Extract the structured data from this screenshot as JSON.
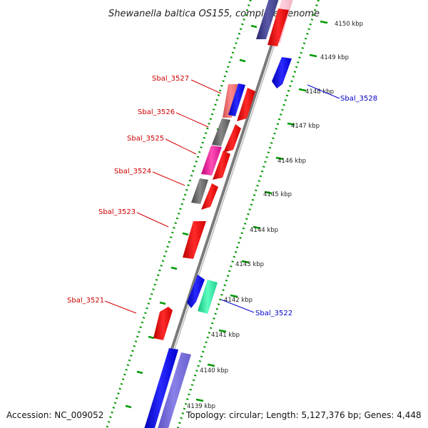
{
  "title": "Shewanella baltica OS155, complete genome",
  "footer": {
    "accession": "Accession: NC_009052",
    "summary": "Topology: circular; Length: 5,127,376 bp; Genes: 4,448"
  },
  "kbp_ticks": [
    "4150 kbp",
    "4149 kbp",
    "4148 kbp",
    "4147 kbp",
    "4146 kbp",
    "4145 kbp",
    "4144 kbp",
    "4143 kbp",
    "4142 kbp",
    "4141 kbp",
    "4140 kbp",
    "4139 kbp"
  ],
  "gene_labels": [
    "Sbal_3527",
    "Sbal_3526",
    "Sbal_3525",
    "Sbal_3524",
    "Sbal_3523",
    "Sbal_3521",
    "Sbal_3528",
    "Sbal_3522"
  ],
  "colors": {
    "forward_cds": "#ff0000",
    "reverse_cds": "#0000ff",
    "backbone": "#888888",
    "tick_green": "#009900",
    "label_red": "#d00000",
    "label_blue": "#0000c8"
  }
}
